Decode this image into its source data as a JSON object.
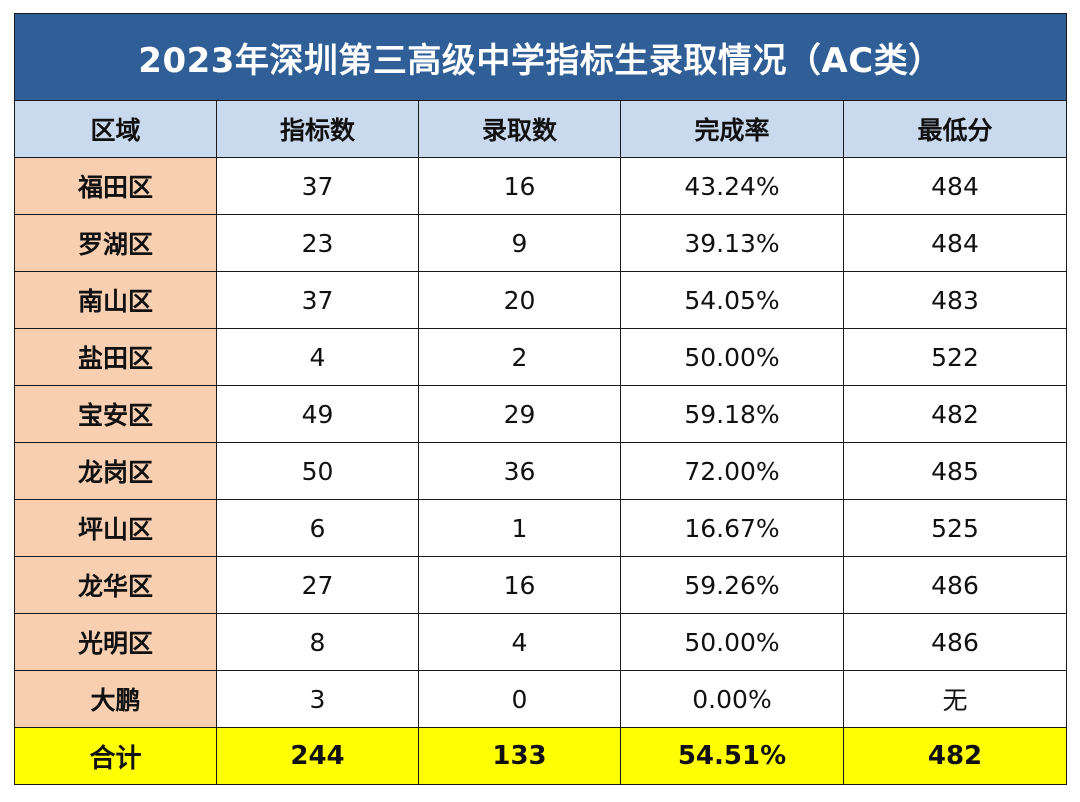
{
  "title": "2023年深圳第三高级中学指标生录取情况（AC类）",
  "headers": [
    "区域",
    "指标数",
    "录取数",
    "完成率",
    "最低分"
  ],
  "rows": [
    {
      "region": "福田区",
      "quota": "37",
      "admitted": "16",
      "rate": "43.24%",
      "min_score": "484"
    },
    {
      "region": "罗湖区",
      "quota": "23",
      "admitted": "9",
      "rate": "39.13%",
      "min_score": "484"
    },
    {
      "region": "南山区",
      "quota": "37",
      "admitted": "20",
      "rate": "54.05%",
      "min_score": "483"
    },
    {
      "region": "盐田区",
      "quota": "4",
      "admitted": "2",
      "rate": "50.00%",
      "min_score": "522"
    },
    {
      "region": "宝安区",
      "quota": "49",
      "admitted": "29",
      "rate": "59.18%",
      "min_score": "482"
    },
    {
      "region": "龙岗区",
      "quota": "50",
      "admitted": "36",
      "rate": "72.00%",
      "min_score": "485"
    },
    {
      "region": "坪山区",
      "quota": "6",
      "admitted": "1",
      "rate": "16.67%",
      "min_score": "525"
    },
    {
      "region": "龙华区",
      "quota": "27",
      "admitted": "16",
      "rate": "59.26%",
      "min_score": "486"
    },
    {
      "region": "光明区",
      "quota": "8",
      "admitted": "4",
      "rate": "50.00%",
      "min_score": "486"
    },
    {
      "region": "大鹏",
      "quota": "3",
      "admitted": "0",
      "rate": "0.00%",
      "min_score": "无"
    }
  ],
  "total": {
    "label": "合计",
    "quota": "244",
    "admitted": "133",
    "rate": "54.51%",
    "min_score": "482"
  },
  "colors": {
    "title_bg": "#2f5f96",
    "header_bg": "#c9d9ee",
    "region_bg": "#f9cfb1",
    "total_bg": "#fffe04"
  }
}
